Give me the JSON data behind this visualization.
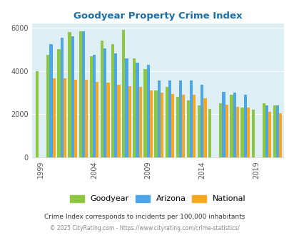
{
  "title": "Goodyear Property Crime Index",
  "subtitle": "Crime Index corresponds to incidents per 100,000 inhabitants",
  "footer": "© 2025 CityRating.com - https://www.cityrating.com/crime-statistics/",
  "years": [
    1999,
    2000,
    2001,
    2002,
    2003,
    2004,
    2005,
    2006,
    2007,
    2008,
    2009,
    2010,
    2011,
    2012,
    2013,
    2014,
    2015,
    2016,
    2017,
    2018,
    2019,
    2020,
    2021
  ],
  "goodyear": [
    4000,
    4750,
    5000,
    5800,
    5850,
    4700,
    5400,
    5250,
    5900,
    4600,
    4100,
    3100,
    3250,
    2800,
    2650,
    2400,
    2250,
    2500,
    2900,
    2300,
    2200,
    2500,
    2400
  ],
  "arizona": [
    null,
    5250,
    5550,
    5600,
    5850,
    4750,
    5050,
    4800,
    4600,
    4400,
    4300,
    3550,
    3550,
    3550,
    3550,
    3350,
    null,
    3050,
    3000,
    2900,
    null,
    2400,
    2400
  ],
  "national": [
    null,
    3650,
    3650,
    3600,
    3600,
    3500,
    3450,
    3350,
    3300,
    3250,
    3100,
    3000,
    2950,
    2900,
    2900,
    2750,
    null,
    2450,
    2350,
    2300,
    null,
    2100,
    2050
  ],
  "bar_colors": {
    "goodyear": "#8dc63f",
    "arizona": "#4da6e8",
    "national": "#f5a623"
  },
  "background_color": "#deeef5",
  "ylim": [
    0,
    6200
  ],
  "yticks": [
    0,
    2000,
    4000,
    6000
  ],
  "xtick_labels": [
    "1999",
    "2004",
    "2009",
    "2014",
    "2019"
  ],
  "xtick_positions": [
    1999,
    2004,
    2009,
    2014,
    2019
  ]
}
